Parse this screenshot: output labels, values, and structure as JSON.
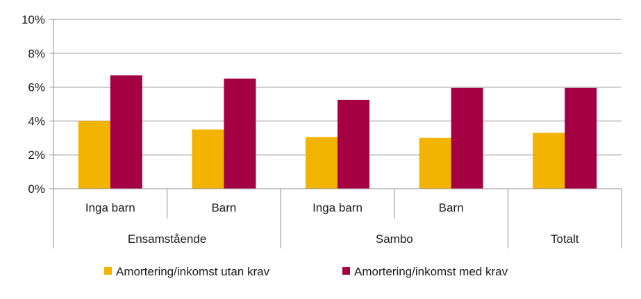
{
  "chart_data": {
    "type": "bar",
    "categories": [
      "Inga barn",
      "Barn",
      "Inga barn",
      "Barn",
      ""
    ],
    "groups": [
      {
        "label": "Ensamstående",
        "span": [
          0,
          1
        ]
      },
      {
        "label": "Sambo",
        "span": [
          2,
          3
        ]
      },
      {
        "label": "Totalt",
        "span": [
          4,
          4
        ]
      }
    ],
    "series": [
      {
        "name": "Amortering/inkomst utan krav",
        "color": "#f2b400",
        "values": [
          4.0,
          3.5,
          3.05,
          3.0,
          3.3
        ]
      },
      {
        "name": "Amortering/inkomst med krav",
        "color": "#a50044",
        "values": [
          6.7,
          6.5,
          5.25,
          5.95,
          5.95
        ]
      }
    ],
    "yticks": [
      "0%",
      "2%",
      "4%",
      "6%",
      "8%",
      "10%"
    ],
    "ylim": [
      0,
      10
    ],
    "unit": "%",
    "grid": true,
    "legend_position": "bottom",
    "title": "",
    "xlabel": "",
    "ylabel": ""
  }
}
